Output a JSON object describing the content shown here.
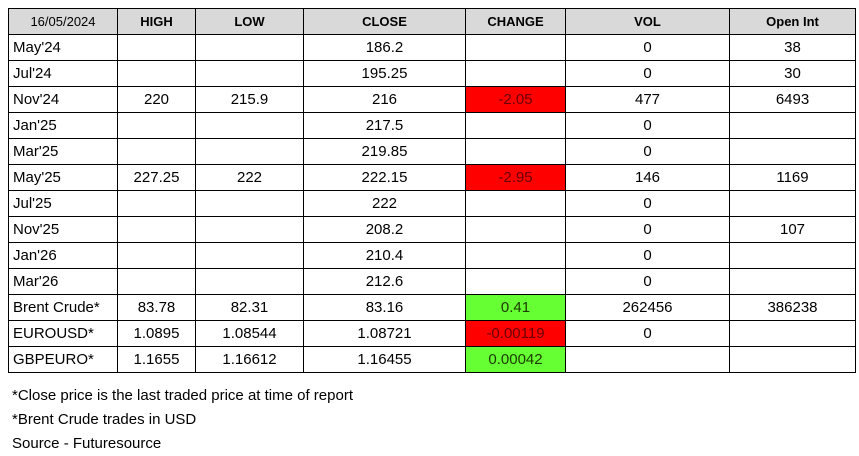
{
  "columns": [
    "16/05/2024",
    "HIGH",
    "LOW",
    "CLOSE",
    "CHANGE",
    "VOL",
    "Open Int"
  ],
  "colors": {
    "header_bg": "#d9d9d9",
    "negative": "#ff0000",
    "positive": "#66ff33"
  },
  "rows": [
    {
      "name": "May'24",
      "high": "",
      "low": "",
      "close": "186.2",
      "change": "",
      "vol": "0",
      "oi": "38",
      "dir": ""
    },
    {
      "name": "Jul'24",
      "high": "",
      "low": "",
      "close": "195.25",
      "change": "",
      "vol": "0",
      "oi": "30",
      "dir": ""
    },
    {
      "name": "Nov'24",
      "high": "220",
      "low": "215.9",
      "close": "216",
      "change": "-2.05",
      "vol": "477",
      "oi": "6493",
      "dir": "neg"
    },
    {
      "name": "Jan'25",
      "high": "",
      "low": "",
      "close": "217.5",
      "change": "",
      "vol": "0",
      "oi": "",
      "dir": ""
    },
    {
      "name": "Mar'25",
      "high": "",
      "low": "",
      "close": "219.85",
      "change": "",
      "vol": "0",
      "oi": "",
      "dir": ""
    },
    {
      "name": "May'25",
      "high": "227.25",
      "low": "222",
      "close": "222.15",
      "change": "-2.95",
      "vol": "146",
      "oi": "1169",
      "dir": "neg"
    },
    {
      "name": "Jul'25",
      "high": "",
      "low": "",
      "close": "222",
      "change": "",
      "vol": "0",
      "oi": "",
      "dir": ""
    },
    {
      "name": "Nov'25",
      "high": "",
      "low": "",
      "close": "208.2",
      "change": "",
      "vol": "0",
      "oi": "107",
      "dir": ""
    },
    {
      "name": "Jan'26",
      "high": "",
      "low": "",
      "close": "210.4",
      "change": "",
      "vol": "0",
      "oi": "",
      "dir": ""
    },
    {
      "name": "Mar'26",
      "high": "",
      "low": "",
      "close": "212.6",
      "change": "",
      "vol": "0",
      "oi": "",
      "dir": ""
    },
    {
      "name": "Brent Crude*",
      "high": "83.78",
      "low": "82.31",
      "close": "83.16",
      "change": "0.41",
      "vol": "262456",
      "oi": "386238",
      "dir": "pos"
    },
    {
      "name": "EUROUSD*",
      "high": "1.0895",
      "low": "1.08544",
      "close": "1.08721",
      "change": "-0.00119",
      "vol": "0",
      "oi": "",
      "dir": "neg"
    },
    {
      "name": "GBPEURO*",
      "high": "1.1655",
      "low": "1.16612",
      "close": "1.16455",
      "change": "0.00042",
      "vol": "",
      "oi": "",
      "dir": "pos"
    }
  ],
  "notes": [
    "*Close price is the last traded price at time of report",
    "*Brent Crude trades in USD",
    "Source -  Futuresource"
  ]
}
